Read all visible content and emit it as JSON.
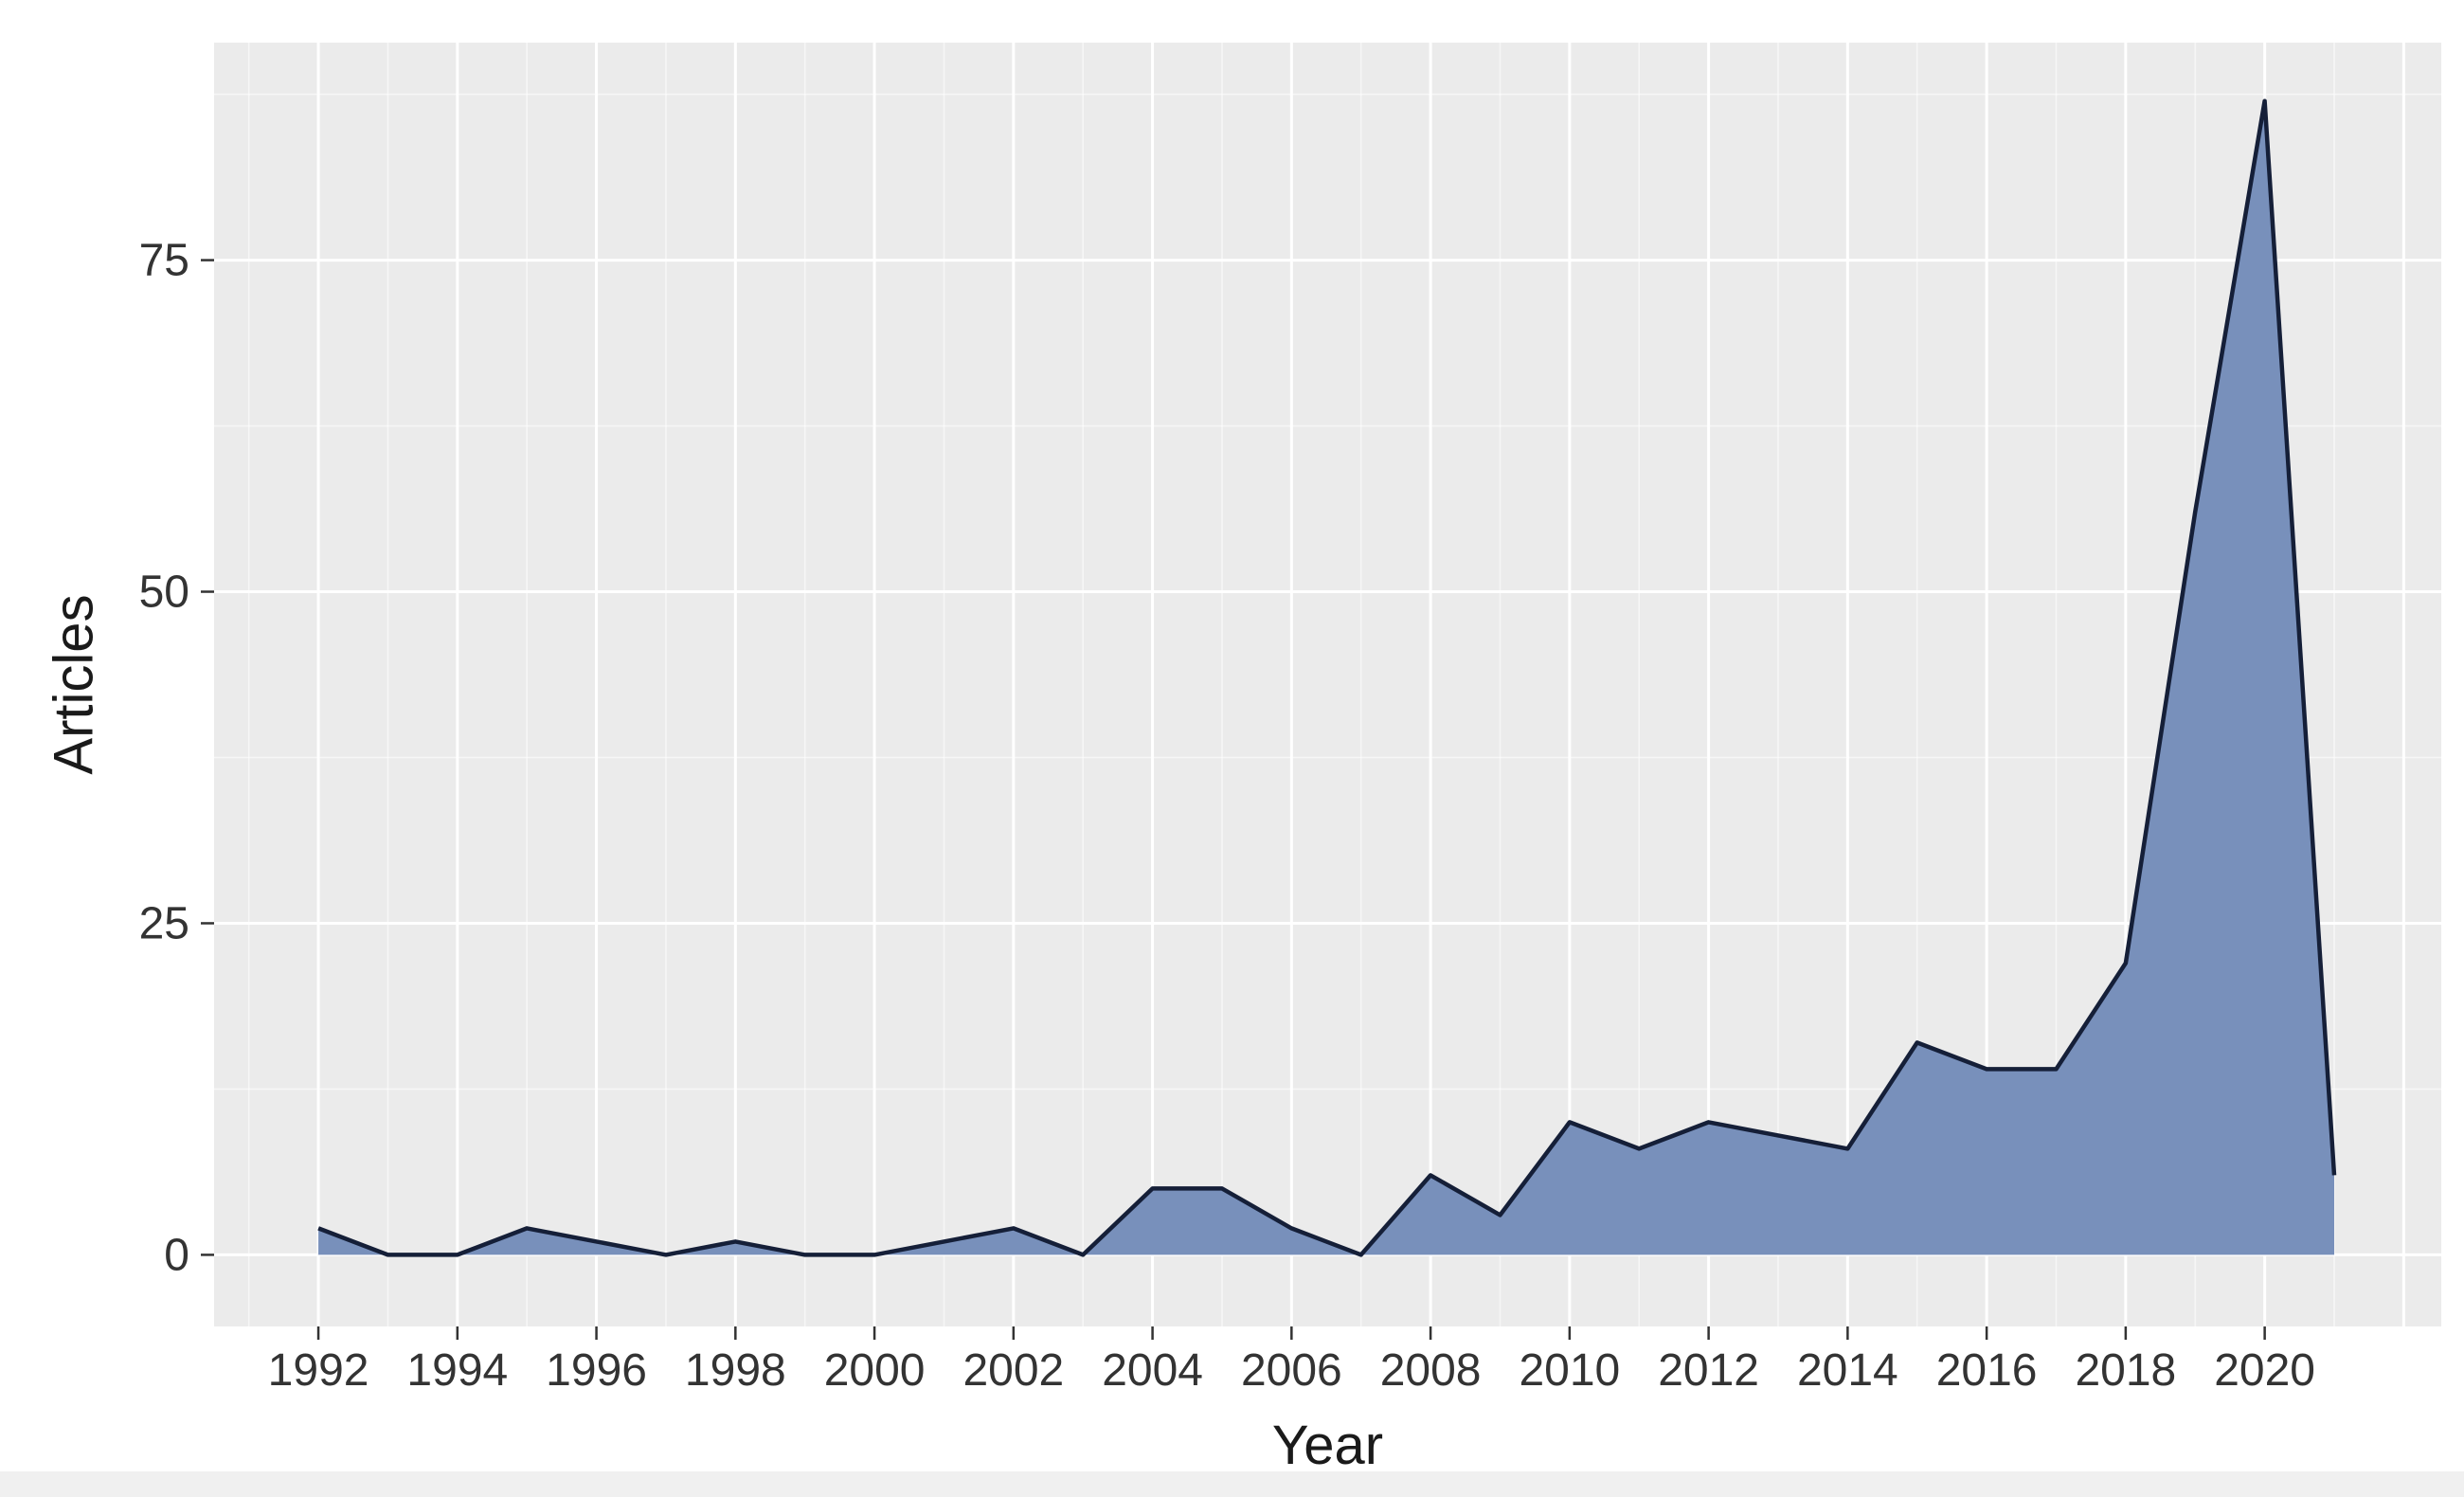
{
  "chart_data": {
    "type": "area",
    "title": "",
    "xlabel": "Year",
    "ylabel": "Articles",
    "x": [
      1992,
      1993,
      1994,
      1995,
      1996,
      1997,
      1998,
      1999,
      2000,
      2001,
      2002,
      2003,
      2004,
      2005,
      2006,
      2007,
      2008,
      2009,
      2010,
      2011,
      2012,
      2013,
      2014,
      2015,
      2016,
      2017,
      2018,
      2019,
      2020,
      2021
    ],
    "series": [
      {
        "name": "Articles",
        "values": [
          2,
          0,
          0,
          2,
          1,
          0,
          1,
          0,
          0,
          1,
          2,
          0,
          5,
          5,
          2,
          0,
          6,
          3,
          10,
          8,
          10,
          9,
          8,
          16,
          14,
          14,
          22,
          56,
          87,
          6
        ]
      }
    ],
    "x_ticks": [
      1992,
      1994,
      1996,
      1998,
      2000,
      2002,
      2004,
      2006,
      2008,
      2010,
      2012,
      2014,
      2016,
      2018,
      2020
    ],
    "y_ticks": [
      0,
      25,
      50,
      75
    ],
    "xlim": [
      1990.5,
      2022.54
    ],
    "ylim": [
      -5.4,
      91.4
    ],
    "grid": "major and minor white gridlines on gray panel",
    "legend_position": "none",
    "colors": {
      "area_fill": "#7890BB",
      "line": "#151F38",
      "panel_bg": "#EBEBEB",
      "grid_major": "#FFFFFF",
      "tick_text": "#333333",
      "tick_mark": "#333333",
      "axis_title_text": "#1A1A1A",
      "outer_bg": "#FFFFFF",
      "bottom_strip": "#F0F0F0"
    }
  }
}
